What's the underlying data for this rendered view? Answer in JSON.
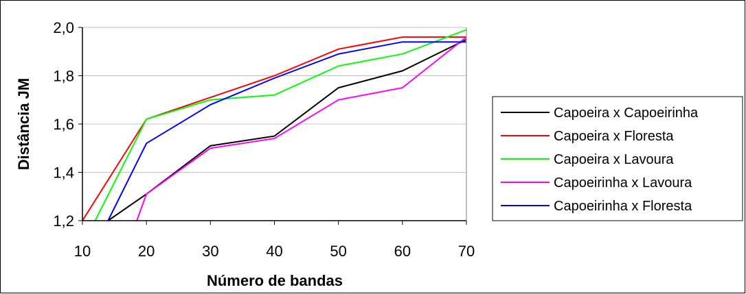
{
  "chart_data": {
    "type": "line",
    "xlabel": "Número de bandas",
    "ylabel": "Distância JM",
    "xlim": [
      10,
      70
    ],
    "ylim": [
      1.2,
      2.0
    ],
    "x_ticks": [
      "10",
      "20",
      "30",
      "40",
      "50",
      "60",
      "70"
    ],
    "y_ticks": [
      "1,2",
      "1,4",
      "1,6",
      "1,8",
      "2,0"
    ],
    "grid": "horizontal",
    "legend_position": "right",
    "series": [
      {
        "name": "Capoeira x Capoeirinha",
        "color": "#000000",
        "x": [
          14,
          20,
          30,
          40,
          50,
          60,
          70
        ],
        "values": [
          1.2,
          1.31,
          1.51,
          1.55,
          1.75,
          1.82,
          1.95
        ]
      },
      {
        "name": "Capoeira x Floresta",
        "color": "#ff0000",
        "x": [
          10,
          20,
          30,
          40,
          50,
          60,
          70
        ],
        "values": [
          1.2,
          1.62,
          1.71,
          1.8,
          1.91,
          1.96,
          1.96
        ]
      },
      {
        "name": "Capoeira x Lavoura",
        "color": "#00ff00",
        "x": [
          12,
          20,
          30,
          40,
          50,
          60,
          70
        ],
        "values": [
          1.2,
          1.62,
          1.7,
          1.72,
          1.84,
          1.89,
          1.99
        ]
      },
      {
        "name": "Capoeirinha x Lavoura",
        "color": "#ff00ff",
        "x": [
          18.5,
          20,
          30,
          40,
          50,
          60,
          70
        ],
        "values": [
          1.2,
          1.31,
          1.5,
          1.54,
          1.7,
          1.75,
          1.96
        ]
      },
      {
        "name": "Capoeirinha x Floresta",
        "color": "#0000ff",
        "x": [
          14,
          20,
          30,
          40,
          50,
          60,
          70
        ],
        "values": [
          1.2,
          1.52,
          1.68,
          1.79,
          1.89,
          1.94,
          1.94
        ]
      }
    ]
  }
}
